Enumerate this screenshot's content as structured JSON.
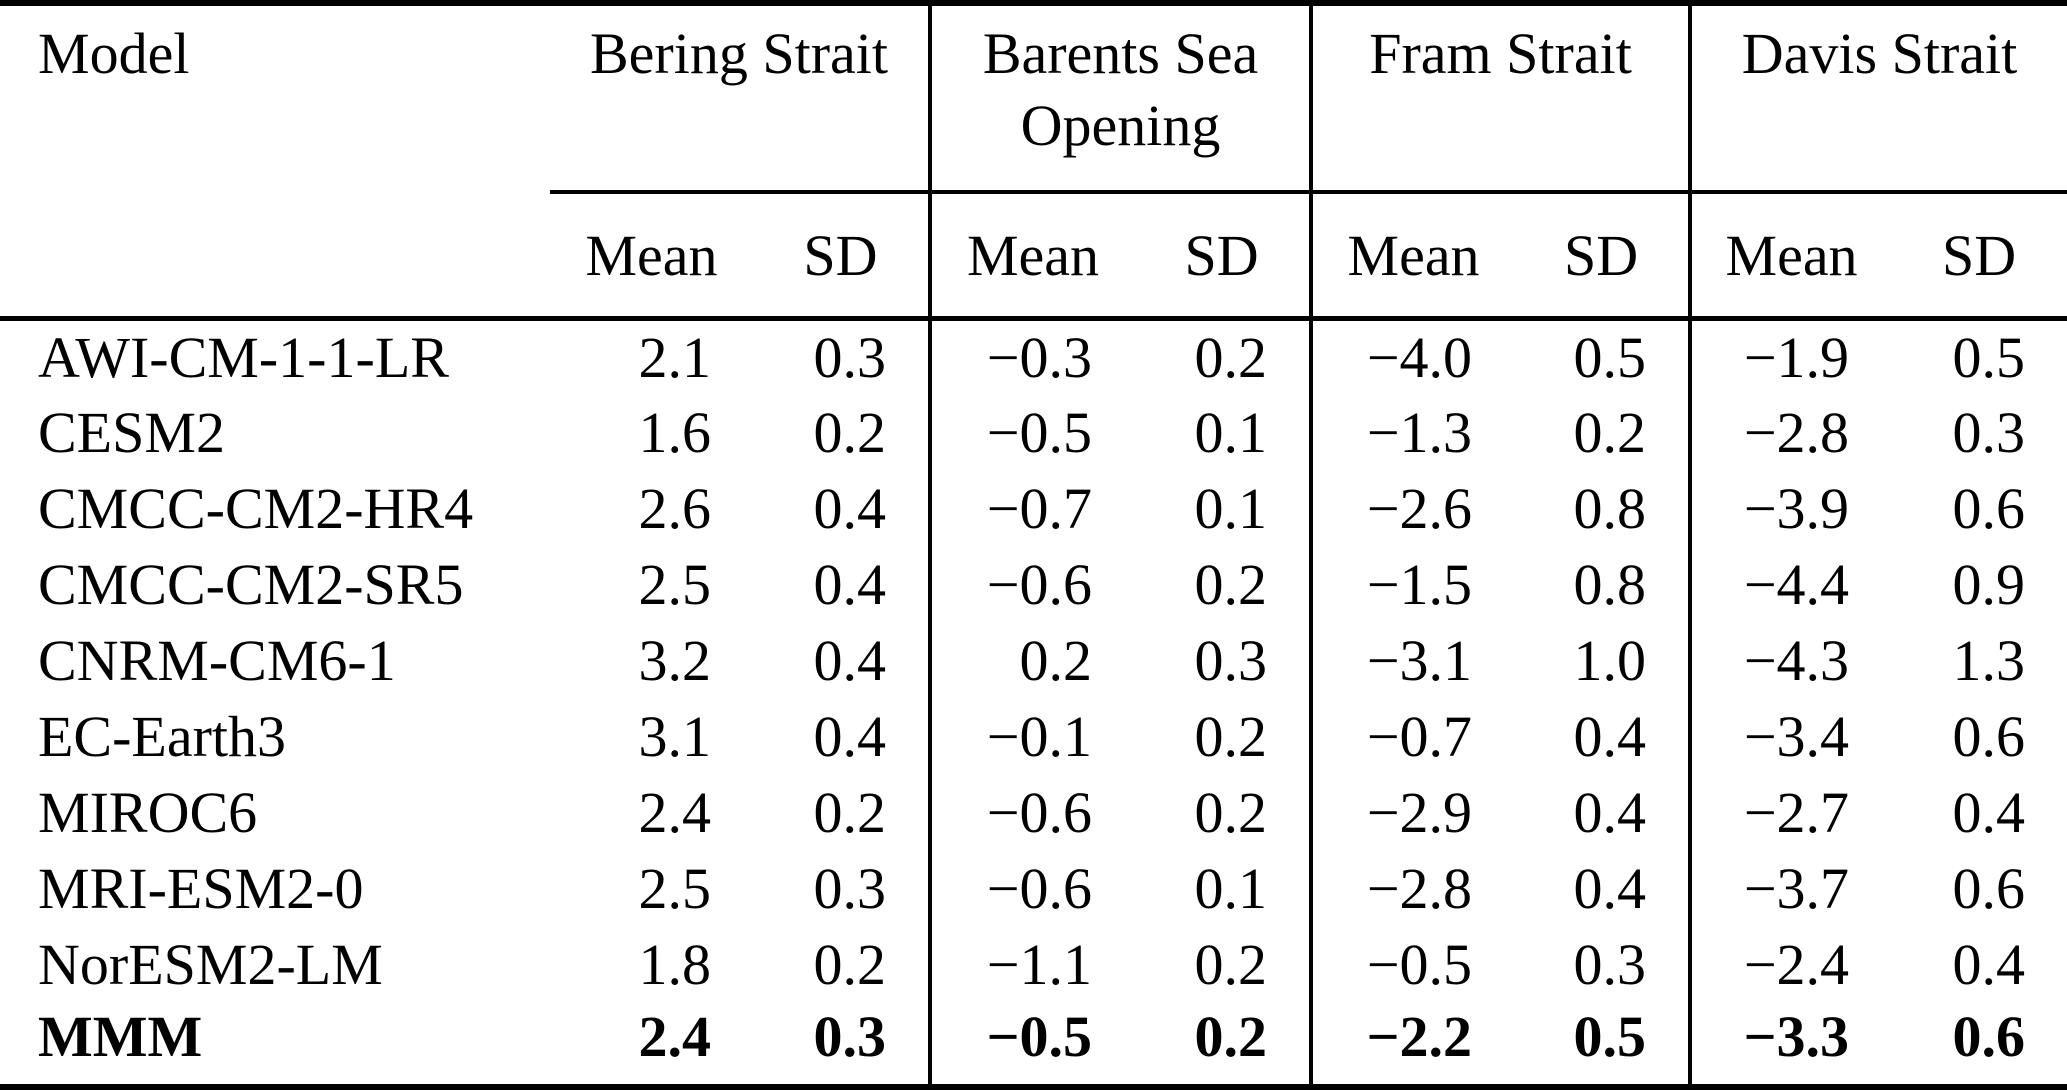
{
  "page": {
    "background_color": "#ffffff",
    "text_color": "#000000",
    "rule_color": "#000000"
  },
  "table": {
    "model_header": "Model",
    "groups": [
      {
        "label": "Bering Strait"
      },
      {
        "label": "Barents Sea Opening"
      },
      {
        "label": "Fram Strait"
      },
      {
        "label": "Davis Strait"
      }
    ],
    "sub_headers": [
      "Mean",
      "SD"
    ],
    "rows": [
      {
        "model": "AWI-CM-1-1-LR",
        "bold": false,
        "values": [
          "2.1",
          "0.3",
          "−0.3",
          "0.2",
          "−4.0",
          "0.5",
          "−1.9",
          "0.5"
        ]
      },
      {
        "model": "CESM2",
        "bold": false,
        "values": [
          "1.6",
          "0.2",
          "−0.5",
          "0.1",
          "−1.3",
          "0.2",
          "−2.8",
          "0.3"
        ]
      },
      {
        "model": "CMCC-CM2-HR4",
        "bold": false,
        "values": [
          "2.6",
          "0.4",
          "−0.7",
          "0.1",
          "−2.6",
          "0.8",
          "−3.9",
          "0.6"
        ]
      },
      {
        "model": "CMCC-CM2-SR5",
        "bold": false,
        "values": [
          "2.5",
          "0.4",
          "−0.6",
          "0.2",
          "−1.5",
          "0.8",
          "−4.4",
          "0.9"
        ]
      },
      {
        "model": "CNRM-CM6-1",
        "bold": false,
        "values": [
          "3.2",
          "0.4",
          "0.2",
          "0.3",
          "−3.1",
          "1.0",
          "−4.3",
          "1.3"
        ]
      },
      {
        "model": "EC-Earth3",
        "bold": false,
        "values": [
          "3.1",
          "0.4",
          "−0.1",
          "0.2",
          "−0.7",
          "0.4",
          "−3.4",
          "0.6"
        ]
      },
      {
        "model": "MIROC6",
        "bold": false,
        "values": [
          "2.4",
          "0.2",
          "−0.6",
          "0.2",
          "−2.9",
          "0.4",
          "−2.7",
          "0.4"
        ]
      },
      {
        "model": "MRI-ESM2-0",
        "bold": false,
        "values": [
          "2.5",
          "0.3",
          "−0.6",
          "0.1",
          "−2.8",
          "0.4",
          "−3.7",
          "0.6"
        ]
      },
      {
        "model": "NorESM2-LM",
        "bold": false,
        "values": [
          "1.8",
          "0.2",
          "−1.1",
          "0.2",
          "−0.5",
          "0.3",
          "−2.4",
          "0.4"
        ]
      },
      {
        "model": "MMM",
        "bold": true,
        "values": [
          "2.4",
          "0.3",
          "−0.5",
          "0.2",
          "−2.2",
          "0.5",
          "−3.3",
          "0.6"
        ]
      }
    ]
  },
  "chart_data": {
    "type": "table",
    "columns": [
      "Model",
      "Bering Strait Mean",
      "Bering Strait SD",
      "Barents Sea Opening Mean",
      "Barents Sea Opening SD",
      "Fram Strait Mean",
      "Fram Strait SD",
      "Davis Strait Mean",
      "Davis Strait SD"
    ],
    "rows": [
      [
        "AWI-CM-1-1-LR",
        2.1,
        0.3,
        -0.3,
        0.2,
        -4.0,
        0.5,
        -1.9,
        0.5
      ],
      [
        "CESM2",
        1.6,
        0.2,
        -0.5,
        0.1,
        -1.3,
        0.2,
        -2.8,
        0.3
      ],
      [
        "CMCC-CM2-HR4",
        2.6,
        0.4,
        -0.7,
        0.1,
        -2.6,
        0.8,
        -3.9,
        0.6
      ],
      [
        "CMCC-CM2-SR5",
        2.5,
        0.4,
        -0.6,
        0.2,
        -1.5,
        0.8,
        -4.4,
        0.9
      ],
      [
        "CNRM-CM6-1",
        3.2,
        0.4,
        0.2,
        0.3,
        -3.1,
        1.0,
        -4.3,
        1.3
      ],
      [
        "EC-Earth3",
        3.1,
        0.4,
        -0.1,
        0.2,
        -0.7,
        0.4,
        -3.4,
        0.6
      ],
      [
        "MIROC6",
        2.4,
        0.2,
        -0.6,
        0.2,
        -2.9,
        0.4,
        -2.7,
        0.4
      ],
      [
        "MRI-ESM2-0",
        2.5,
        0.3,
        -0.6,
        0.1,
        -2.8,
        0.4,
        -3.7,
        0.6
      ],
      [
        "NorESM2-LM",
        1.8,
        0.2,
        -1.1,
        0.2,
        -0.5,
        0.3,
        -2.4,
        0.4
      ],
      [
        "MMM",
        2.4,
        0.3,
        -0.5,
        0.2,
        -2.2,
        0.5,
        -3.3,
        0.6
      ]
    ]
  }
}
